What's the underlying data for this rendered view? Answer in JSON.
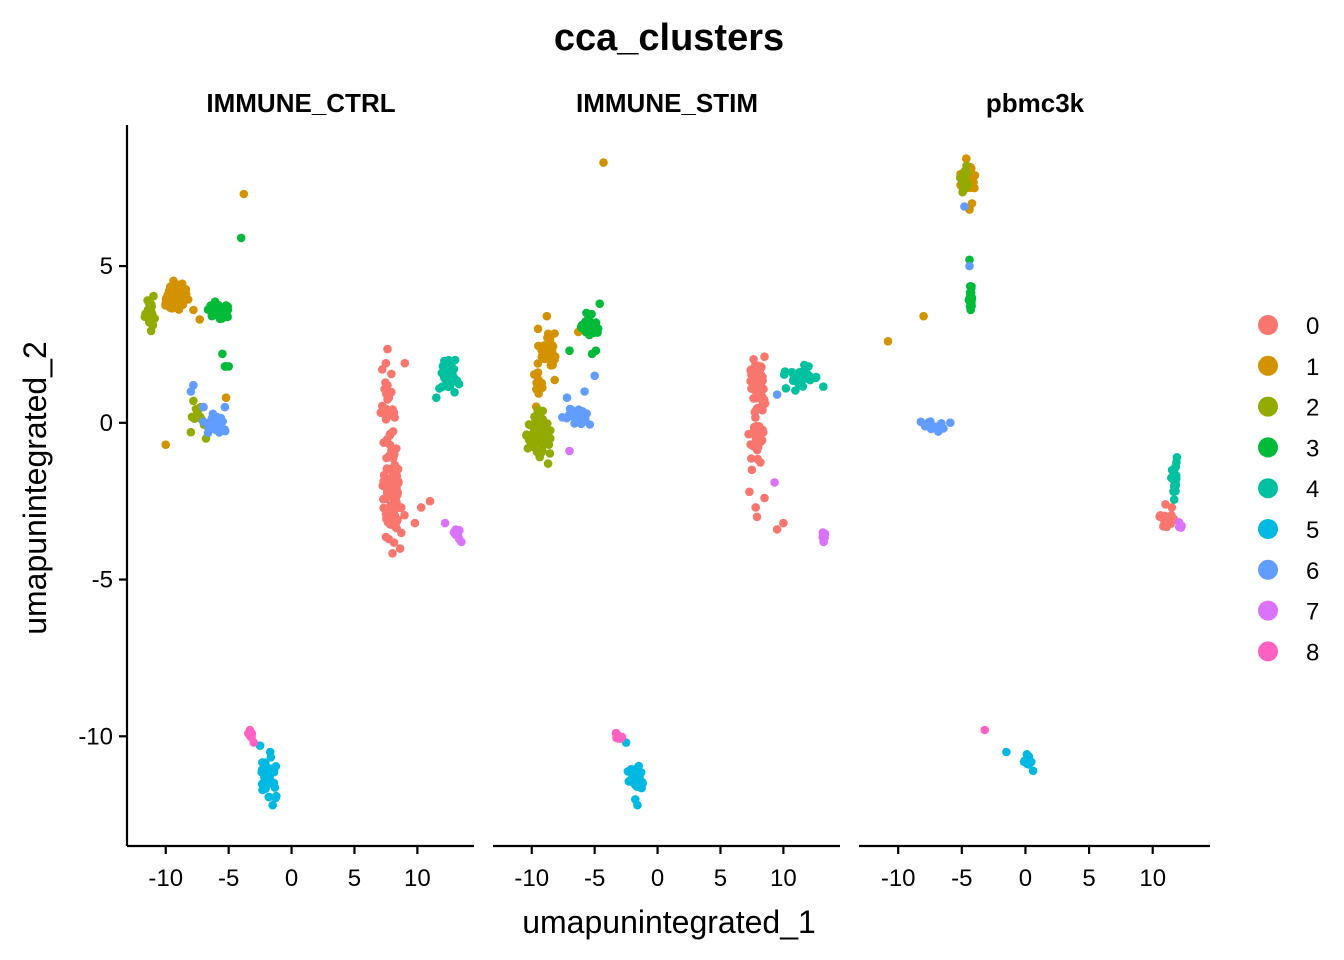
{
  "chart_data": {
    "type": "scatter",
    "title": "cca_clusters",
    "xlabel": "umapunintegrated_1",
    "ylabel": "umapunintegrated_2",
    "xlim": [
      -13,
      14.5
    ],
    "ylim": [
      -13.5,
      9.5
    ],
    "x_ticks": [
      -10,
      -5,
      0,
      5,
      10
    ],
    "x_tick_labels": [
      "-10",
      "-5",
      "0",
      "5",
      "10"
    ],
    "y_ticks": [
      -10,
      -5,
      0,
      5
    ],
    "y_tick_labels": [
      "-10",
      "-5",
      "0",
      "5"
    ],
    "grid": false,
    "legend_position": "right",
    "legend": {
      "entries": [
        {
          "label": "0",
          "color": "#F8766D"
        },
        {
          "label": "1",
          "color": "#D39200"
        },
        {
          "label": "2",
          "color": "#93AA00"
        },
        {
          "label": "3",
          "color": "#00BA38"
        },
        {
          "label": "4",
          "color": "#00C19F"
        },
        {
          "label": "5",
          "color": "#00B9E3"
        },
        {
          "label": "6",
          "color": "#619CFF"
        },
        {
          "label": "7",
          "color": "#DB72FB"
        },
        {
          "label": "8",
          "color": "#FF61C3"
        }
      ]
    },
    "panels": [
      {
        "label": "IMMUNE_CTRL",
        "clusters": [
          {
            "cluster": "0",
            "blobs": [
              [
                8.0,
                -2.2,
                0.6,
                1.3,
                110
              ],
              [
                7.7,
                0.4,
                0.5,
                1.2,
                25
              ]
            ],
            "points": [
              [
                7.5,
                1.9
              ],
              [
                9.0,
                1.9
              ],
              [
                10.3,
                -2.7
              ],
              [
                11.0,
                -2.5
              ],
              [
                9.8,
                -3.2
              ],
              [
                7.2,
                1.7
              ]
            ]
          },
          {
            "cluster": "1",
            "blobs": [
              [
                -9.3,
                4.0,
                1.0,
                0.35,
                60
              ]
            ],
            "points": [
              [
                -3.8,
                7.3
              ],
              [
                -7.8,
                3.6
              ],
              [
                -7.3,
                3.3
              ],
              [
                -10.0,
                -0.7
              ],
              [
                -5.2,
                0.8
              ]
            ]
          },
          {
            "cluster": "2",
            "blobs": [
              [
                -11.3,
                3.4,
                0.35,
                0.45,
                25
              ],
              [
                -7.5,
                0.2,
                0.5,
                0.4,
                10
              ]
            ],
            "points": [
              [
                -7.8,
                0.7
              ],
              [
                -6.8,
                -0.5
              ],
              [
                -8.0,
                -0.3
              ]
            ]
          },
          {
            "cluster": "3",
            "blobs": [
              [
                -5.8,
                3.6,
                0.9,
                0.25,
                35
              ]
            ],
            "points": [
              [
                -4.0,
                5.9
              ],
              [
                -5.5,
                2.2
              ],
              [
                -5.2,
                1.8
              ],
              [
                -5.3,
                1.8
              ],
              [
                -5.0,
                1.8
              ]
            ]
          },
          {
            "cluster": "4",
            "blobs": [
              [
                12.4,
                1.5,
                0.6,
                0.35,
                45
              ]
            ],
            "points": [
              [
                13.0,
                2.0
              ],
              [
                11.5,
                0.8
              ]
            ]
          },
          {
            "cluster": "5",
            "blobs": [
              [
                -1.8,
                -11.3,
                0.5,
                0.5,
                40
              ]
            ],
            "points": [
              [
                -2.5,
                -10.3
              ],
              [
                -1.5,
                -12.2
              ],
              [
                -1.7,
                -10.5
              ]
            ]
          },
          {
            "cluster": "6",
            "blobs": [
              [
                -6.0,
                0.0,
                0.8,
                0.3,
                25
              ]
            ],
            "points": [
              [
                -7.8,
                1.2
              ],
              [
                -8.0,
                1.0
              ],
              [
                -7.0,
                0.5
              ],
              [
                -5.3,
                0.5
              ]
            ]
          },
          {
            "cluster": "7",
            "blobs": [
              [
                13.0,
                -3.5,
                0.35,
                0.15,
                10
              ]
            ],
            "points": [
              [
                12.2,
                -3.2
              ],
              [
                13.5,
                -3.8
              ]
            ]
          },
          {
            "cluster": "8",
            "blobs": [
              [
                -3.3,
                -9.9,
                0.2,
                0.15,
                8
              ]
            ],
            "points": [
              [
                -3.0,
                -10.2
              ]
            ]
          }
        ]
      },
      {
        "label": "IMMUNE_STIM",
        "clusters": [
          {
            "cluster": "0",
            "blobs": [
              [
                8.0,
                1.2,
                0.6,
                0.6,
                60
              ],
              [
                7.9,
                -0.4,
                0.5,
                0.6,
                30
              ]
            ],
            "points": [
              [
                7.5,
                -1.5
              ],
              [
                7.3,
                -2.2
              ],
              [
                7.8,
                -2.7
              ],
              [
                8.5,
                -2.4
              ],
              [
                10.0,
                -3.2
              ],
              [
                9.5,
                -3.4
              ],
              [
                7.9,
                -3.0
              ]
            ]
          },
          {
            "cluster": "1",
            "blobs": [
              [
                -8.7,
                2.3,
                0.6,
                0.5,
                40
              ],
              [
                -9.5,
                1.2,
                0.3,
                0.5,
                15
              ]
            ],
            "points": [
              [
                -4.3,
                8.3
              ],
              [
                -8.8,
                3.4
              ],
              [
                -9.5,
                3.0
              ],
              [
                -6.3,
                2.9
              ]
            ]
          },
          {
            "cluster": "2",
            "blobs": [
              [
                -9.3,
                -0.3,
                0.7,
                0.6,
                70
              ]
            ],
            "points": [
              [
                -8.7,
                -1.3
              ]
            ]
          },
          {
            "cluster": "3",
            "blobs": [
              [
                -5.5,
                3.0,
                0.7,
                0.3,
                30
              ]
            ],
            "points": [
              [
                -4.6,
                3.8
              ],
              [
                -7.0,
                2.3
              ],
              [
                -5.2,
                2.2
              ],
              [
                -4.9,
                2.3
              ]
            ]
          },
          {
            "cluster": "4",
            "blobs": [
              [
                11.5,
                1.4,
                0.9,
                0.3,
                35
              ]
            ],
            "points": [
              [
                12.0,
                1.8
              ],
              [
                10.2,
                1.1
              ]
            ]
          },
          {
            "cluster": "5",
            "blobs": [
              [
                -1.7,
                -11.3,
                0.5,
                0.4,
                40
              ]
            ],
            "points": [
              [
                -1.6,
                -12.2
              ],
              [
                -2.5,
                -10.2
              ]
            ]
          },
          {
            "cluster": "6",
            "blobs": [
              [
                -6.5,
                0.2,
                0.8,
                0.3,
                25
              ]
            ],
            "points": [
              [
                -5.0,
                1.5
              ],
              [
                -7.2,
                0.8
              ],
              [
                -5.8,
                1.0
              ],
              [
                9.5,
                0.9
              ]
            ]
          },
          {
            "cluster": "7",
            "blobs": [
              [
                13.2,
                -3.6,
                0.2,
                0.08,
                6
              ]
            ],
            "points": [
              [
                -7.0,
                -0.9
              ],
              [
                9.3,
                -1.9
              ],
              [
                13.2,
                -3.8
              ]
            ]
          },
          {
            "cluster": "8",
            "blobs": [
              [
                -3.1,
                -10.0,
                0.25,
                0.15,
                8
              ]
            ],
            "points": [
              [
                -3.3,
                -9.9
              ]
            ]
          }
        ]
      },
      {
        "label": "pbmc3k",
        "clusters": [
          {
            "cluster": "0",
            "blobs": [
              [
                11.2,
                -3.1,
                0.5,
                0.2,
                18
              ]
            ],
            "points": [
              [
                11.0,
                -2.6
              ],
              [
                11.5,
                -2.7
              ]
            ]
          },
          {
            "cluster": "1",
            "blobs": [
              [
                -4.5,
                7.8,
                0.45,
                0.35,
                40
              ]
            ],
            "points": [
              [
                -10.8,
                2.6
              ],
              [
                -8.0,
                3.4
              ],
              [
                -4.2,
                7.0
              ],
              [
                -4.4,
                6.8
              ]
            ]
          },
          {
            "cluster": "2",
            "blobs": [
              [
                -4.8,
                7.7,
                0.3,
                0.35,
                20
              ]
            ],
            "points": [
              [
                -4.6,
                8.2
              ]
            ]
          },
          {
            "cluster": "3",
            "blobs": [
              [
                -4.3,
                4.1,
                0.12,
                0.35,
                20
              ]
            ],
            "points": [
              [
                -4.4,
                5.2
              ],
              [
                -4.3,
                3.6
              ]
            ]
          },
          {
            "cluster": "4",
            "blobs": [
              [
                11.7,
                -1.8,
                0.2,
                0.55,
                20
              ]
            ],
            "points": [
              [
                11.9,
                -1.1
              ]
            ]
          },
          {
            "cluster": "5",
            "blobs": [
              [
                0.2,
                -10.8,
                0.2,
                0.15,
                15
              ]
            ],
            "points": [
              [
                -1.5,
                -10.5
              ],
              [
                0.6,
                -11.1
              ]
            ]
          },
          {
            "cluster": "6",
            "blobs": [
              [
                -7.0,
                -0.05,
                1.0,
                0.2,
                10
              ]
            ],
            "points": [
              [
                -4.8,
                6.9
              ],
              [
                -4.4,
                5.0
              ]
            ]
          },
          {
            "cluster": "7",
            "blobs": [
              [
                12.2,
                -3.3,
                0.2,
                0.08,
                5
              ]
            ],
            "points": []
          },
          {
            "cluster": "8",
            "blobs": [],
            "points": [
              [
                -3.2,
                -9.8
              ]
            ]
          }
        ]
      }
    ]
  }
}
